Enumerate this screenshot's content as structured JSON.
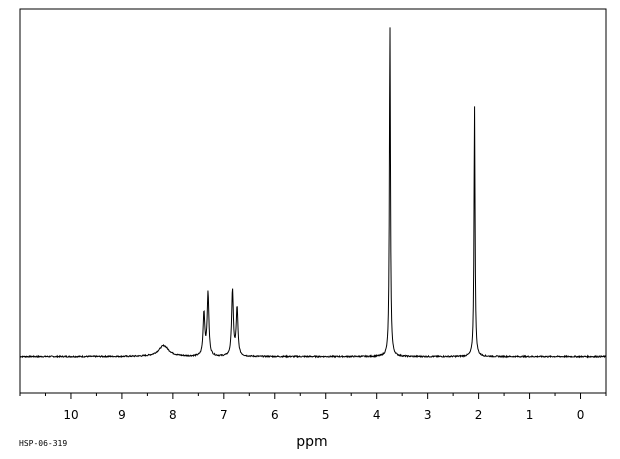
{
  "chart_data": {
    "type": "line",
    "title": "",
    "xlabel": "ppm",
    "ylabel": "",
    "xlim": [
      11.0,
      -0.5
    ],
    "x_reversed": true,
    "grid": false,
    "legend": "none",
    "x_ticks": [
      10,
      9,
      8,
      7,
      6,
      5,
      4,
      3,
      2,
      1,
      0
    ],
    "x_tick_labels": [
      "10",
      "9",
      "8",
      "7",
      "6",
      "5",
      "4",
      "3",
      "2",
      "1",
      "0"
    ],
    "x_minor_step": 0.5,
    "spectrum_code": "HSP-06-319",
    "baseline": 0,
    "ylim": [
      -0.11,
      1.05
    ],
    "line_color": "#000000",
    "peaks": [
      {
        "ppm": 8.18,
        "height": 0.033,
        "width": 0.12
      },
      {
        "ppm": 7.39,
        "height": 0.13,
        "width": 0.02
      },
      {
        "ppm": 7.31,
        "height": 0.19,
        "width": 0.02
      },
      {
        "ppm": 6.83,
        "height": 0.2,
        "width": 0.02
      },
      {
        "ppm": 6.74,
        "height": 0.145,
        "width": 0.02
      },
      {
        "ppm": 3.74,
        "height": 1.01,
        "width": 0.012
      },
      {
        "ppm": 2.08,
        "height": 0.76,
        "width": 0.012
      }
    ]
  }
}
